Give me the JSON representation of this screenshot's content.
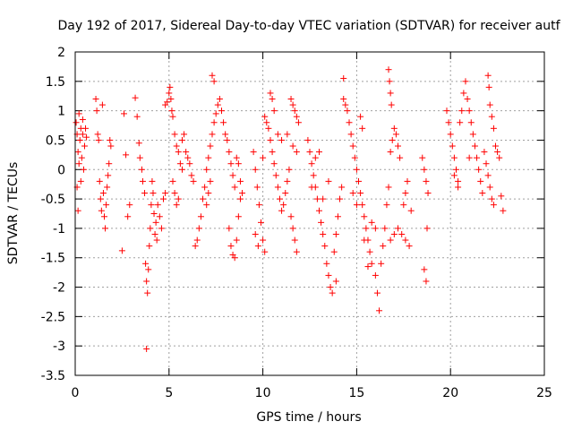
{
  "chart_data": {
    "type": "scatter",
    "title": "Day 192 of 2017, Sidereal Day-to-day VTEC variation (SDTVAR) for receiver autf",
    "xlabel": "GPS time / hours",
    "ylabel": "SDTVAR / TECUs",
    "xlim": [
      0,
      25
    ],
    "ylim": [
      -3.5,
      2
    ],
    "xticks": [
      0,
      5,
      10,
      15,
      20,
      25
    ],
    "xtick_labels": [
      "0",
      "5",
      "10",
      "15",
      "20",
      "25"
    ],
    "yticks": [
      -3.5,
      -3,
      -2.5,
      -2,
      -1.5,
      -1,
      -0.5,
      0,
      0.5,
      1,
      1.5,
      2
    ],
    "ytick_labels": [
      "-3.5",
      "-3",
      "-2.5",
      "-2",
      "-1.5",
      "-1",
      "-0.5",
      "0",
      "0.5",
      "1",
      "1.5",
      "2"
    ],
    "grid": true,
    "marker": "+",
    "color": "#ff0000",
    "series": [
      {
        "name": "SDTVAR",
        "points": [
          [
            0.05,
            0.8
          ],
          [
            0.1,
            0.6
          ],
          [
            0.1,
            -0.3
          ],
          [
            0.15,
            0.3
          ],
          [
            0.15,
            -0.7
          ],
          [
            0.2,
            0.1
          ],
          [
            0.25,
            0.5
          ],
          [
            0.3,
            0.7
          ],
          [
            0.3,
            -0.2
          ],
          [
            0.35,
            0.2
          ],
          [
            0.4,
            0.6
          ],
          [
            0.45,
            0.0
          ],
          [
            0.5,
            0.4
          ],
          [
            0.55,
            0.7
          ],
          [
            0.6,
            0.55
          ],
          [
            0.2,
            0.95
          ],
          [
            0.4,
            0.85
          ],
          [
            1.1,
            1.2
          ],
          [
            1.15,
            1.0
          ],
          [
            1.2,
            0.6
          ],
          [
            1.25,
            0.5
          ],
          [
            1.3,
            -0.2
          ],
          [
            1.35,
            -0.5
          ],
          [
            1.4,
            -0.7
          ],
          [
            1.5,
            -0.4
          ],
          [
            1.55,
            -0.8
          ],
          [
            1.6,
            -1.0
          ],
          [
            1.65,
            -0.6
          ],
          [
            1.7,
            -0.3
          ],
          [
            1.75,
            -0.1
          ],
          [
            1.8,
            0.1
          ],
          [
            1.9,
            0.4
          ],
          [
            1.45,
            1.1
          ],
          [
            1.85,
            0.5
          ],
          [
            2.5,
            -1.38
          ],
          [
            2.6,
            0.95
          ],
          [
            2.7,
            0.25
          ],
          [
            2.8,
            -0.8
          ],
          [
            2.9,
            -0.6
          ],
          [
            3.2,
            1.22
          ],
          [
            3.3,
            0.9
          ],
          [
            3.4,
            0.45
          ],
          [
            3.45,
            0.2
          ],
          [
            3.55,
            0.0
          ],
          [
            3.6,
            -0.2
          ],
          [
            3.7,
            -0.4
          ],
          [
            3.75,
            -1.6
          ],
          [
            3.8,
            -1.9
          ],
          [
            3.85,
            -2.1
          ],
          [
            3.9,
            -1.7
          ],
          [
            3.95,
            -1.3
          ],
          [
            4.0,
            -1.0
          ],
          [
            4.05,
            -0.6
          ],
          [
            4.1,
            -0.2
          ],
          [
            4.15,
            -0.4
          ],
          [
            4.2,
            -0.75
          ],
          [
            4.3,
            -0.9
          ],
          [
            4.4,
            -0.6
          ],
          [
            4.5,
            -0.8
          ],
          [
            4.6,
            -1.0
          ],
          [
            4.7,
            -0.5
          ],
          [
            4.8,
            -0.4
          ],
          [
            3.8,
            -3.05
          ],
          [
            4.25,
            -1.1
          ],
          [
            4.35,
            -1.2
          ],
          [
            4.8,
            1.1
          ],
          [
            4.9,
            1.15
          ],
          [
            5.0,
            1.3
          ],
          [
            5.05,
            1.4
          ],
          [
            5.1,
            1.2
          ],
          [
            5.15,
            1.0
          ],
          [
            5.2,
            0.9
          ],
          [
            5.3,
            0.6
          ],
          [
            5.4,
            0.4
          ],
          [
            5.5,
            0.3
          ],
          [
            5.6,
            0.1
          ],
          [
            5.7,
            0.0
          ],
          [
            5.2,
            -0.2
          ],
          [
            5.3,
            -0.4
          ],
          [
            5.4,
            -0.6
          ],
          [
            5.5,
            -0.5
          ],
          [
            5.7,
            0.5
          ],
          [
            5.8,
            0.6
          ],
          [
            5.9,
            0.3
          ],
          [
            6.0,
            0.2
          ],
          [
            6.1,
            0.1
          ],
          [
            6.2,
            -0.1
          ],
          [
            6.3,
            -0.2
          ],
          [
            6.4,
            -1.3
          ],
          [
            6.5,
            -1.2
          ],
          [
            6.6,
            -1.0
          ],
          [
            6.7,
            -0.8
          ],
          [
            6.8,
            -0.5
          ],
          [
            6.9,
            -0.3
          ],
          [
            7.0,
            0.0
          ],
          [
            7.1,
            0.2
          ],
          [
            7.2,
            0.4
          ],
          [
            7.3,
            0.6
          ],
          [
            7.4,
            0.8
          ],
          [
            7.5,
            0.95
          ],
          [
            7.6,
            1.1
          ],
          [
            7.7,
            1.2
          ],
          [
            7.8,
            1.0
          ],
          [
            7.9,
            0.8
          ],
          [
            8.0,
            0.6
          ],
          [
            8.1,
            0.5
          ],
          [
            8.2,
            0.3
          ],
          [
            8.3,
            0.1
          ],
          [
            8.4,
            -0.1
          ],
          [
            8.5,
            -0.3
          ],
          [
            7.3,
            1.6
          ],
          [
            7.4,
            1.5
          ],
          [
            8.6,
            0.2
          ],
          [
            8.7,
            0.1
          ],
          [
            8.8,
            -0.2
          ],
          [
            7.0,
            -0.6
          ],
          [
            7.1,
            -0.4
          ],
          [
            7.2,
            -0.2
          ],
          [
            8.2,
            -1.0
          ],
          [
            8.3,
            -1.3
          ],
          [
            8.4,
            -1.45
          ],
          [
            8.5,
            -1.5
          ],
          [
            8.6,
            -1.2
          ],
          [
            8.7,
            -0.8
          ],
          [
            8.8,
            -0.5
          ],
          [
            8.9,
            -0.4
          ],
          [
            9.5,
            0.3
          ],
          [
            9.6,
            0.0
          ],
          [
            9.7,
            -0.3
          ],
          [
            9.8,
            -0.6
          ],
          [
            9.9,
            -0.9
          ],
          [
            10.0,
            -1.2
          ],
          [
            10.1,
            -1.4
          ],
          [
            9.6,
            -1.1
          ],
          [
            9.75,
            -1.3
          ],
          [
            10.0,
            0.2
          ],
          [
            10.1,
            0.9
          ],
          [
            10.3,
            0.7
          ],
          [
            10.4,
            0.5
          ],
          [
            10.5,
            0.3
          ],
          [
            10.6,
            0.1
          ],
          [
            10.7,
            -0.1
          ],
          [
            10.8,
            -0.3
          ],
          [
            10.9,
            -0.5
          ],
          [
            11.0,
            -0.7
          ],
          [
            11.1,
            -0.6
          ],
          [
            11.2,
            -0.4
          ],
          [
            11.3,
            -0.2
          ],
          [
            11.4,
            0.0
          ],
          [
            11.5,
            -0.8
          ],
          [
            11.6,
            -1.0
          ],
          [
            11.7,
            -1.2
          ],
          [
            11.8,
            -1.4
          ],
          [
            10.4,
            1.3
          ],
          [
            10.5,
            1.2
          ],
          [
            10.6,
            1.0
          ],
          [
            11.5,
            1.2
          ],
          [
            11.6,
            1.1
          ],
          [
            11.7,
            1.0
          ],
          [
            11.8,
            0.9
          ],
          [
            11.9,
            0.8
          ],
          [
            11.0,
            0.5
          ],
          [
            11.3,
            0.6
          ],
          [
            11.6,
            0.4
          ],
          [
            11.8,
            0.3
          ],
          [
            10.2,
            0.8
          ],
          [
            10.8,
            0.6
          ],
          [
            12.4,
            0.5
          ],
          [
            12.5,
            0.3
          ],
          [
            12.6,
            0.1
          ],
          [
            12.7,
            -0.1
          ],
          [
            12.8,
            -0.3
          ],
          [
            12.9,
            -0.5
          ],
          [
            13.0,
            -0.7
          ],
          [
            13.1,
            -0.9
          ],
          [
            13.2,
            -1.1
          ],
          [
            13.3,
            -1.3
          ],
          [
            13.4,
            -1.6
          ],
          [
            13.5,
            -1.8
          ],
          [
            13.6,
            -2.0
          ],
          [
            13.7,
            -2.1
          ],
          [
            13.8,
            -1.4
          ],
          [
            13.9,
            -1.1
          ],
          [
            14.0,
            -0.8
          ],
          [
            14.1,
            -0.5
          ],
          [
            14.2,
            -0.3
          ],
          [
            12.8,
            0.2
          ],
          [
            13.0,
            0.3
          ],
          [
            13.5,
            -0.2
          ],
          [
            13.9,
            -1.9
          ],
          [
            12.6,
            -0.3
          ],
          [
            13.2,
            -0.5
          ],
          [
            14.3,
            1.2
          ],
          [
            14.4,
            1.1
          ],
          [
            14.5,
            1.0
          ],
          [
            14.6,
            0.8
          ],
          [
            14.7,
            0.6
          ],
          [
            14.8,
            0.4
          ],
          [
            14.9,
            0.2
          ],
          [
            15.0,
            0.0
          ],
          [
            15.1,
            -0.2
          ],
          [
            15.2,
            -0.4
          ],
          [
            15.3,
            -0.6
          ],
          [
            15.4,
            -0.8
          ],
          [
            15.5,
            -1.0
          ],
          [
            15.6,
            -1.2
          ],
          [
            15.7,
            -1.4
          ],
          [
            15.8,
            -1.6
          ],
          [
            14.3,
            1.55
          ],
          [
            15.2,
            0.9
          ],
          [
            15.3,
            0.7
          ],
          [
            14.8,
            -0.4
          ],
          [
            15.0,
            -0.6
          ],
          [
            15.8,
            -0.9
          ],
          [
            16.0,
            -1.0
          ],
          [
            15.4,
            -1.2
          ],
          [
            15.6,
            -1.65
          ],
          [
            16.0,
            -1.8
          ],
          [
            16.1,
            -2.1
          ],
          [
            16.2,
            -2.4
          ],
          [
            16.3,
            -1.6
          ],
          [
            16.4,
            -1.3
          ],
          [
            16.5,
            -1.0
          ],
          [
            16.6,
            -0.6
          ],
          [
            16.7,
            -0.3
          ],
          [
            16.8,
            0.3
          ],
          [
            16.9,
            0.5
          ],
          [
            17.0,
            0.7
          ],
          [
            17.1,
            0.6
          ],
          [
            17.2,
            0.4
          ],
          [
            17.3,
            0.2
          ],
          [
            16.8,
            -1.2
          ],
          [
            17.0,
            -1.1
          ],
          [
            17.2,
            -1.0
          ],
          [
            17.4,
            -1.1
          ],
          [
            17.6,
            -1.2
          ],
          [
            17.8,
            -1.3
          ],
          [
            16.7,
            1.7
          ],
          [
            16.75,
            1.5
          ],
          [
            16.8,
            1.3
          ],
          [
            16.85,
            1.1
          ],
          [
            17.5,
            -0.6
          ],
          [
            17.6,
            -0.4
          ],
          [
            17.7,
            -0.2
          ],
          [
            17.9,
            -0.7
          ],
          [
            18.5,
            0.2
          ],
          [
            18.6,
            0.0
          ],
          [
            18.7,
            -0.2
          ],
          [
            18.8,
            -0.4
          ],
          [
            18.6,
            -1.7
          ],
          [
            18.7,
            -1.9
          ],
          [
            18.75,
            -1.0
          ],
          [
            19.8,
            1.0
          ],
          [
            19.9,
            0.8
          ],
          [
            20.0,
            0.6
          ],
          [
            20.1,
            0.4
          ],
          [
            20.2,
            0.2
          ],
          [
            20.3,
            0.0
          ],
          [
            20.4,
            -0.2
          ],
          [
            20.5,
            0.8
          ],
          [
            20.6,
            1.0
          ],
          [
            20.7,
            1.3
          ],
          [
            20.8,
            1.5
          ],
          [
            20.9,
            1.2
          ],
          [
            21.0,
            1.0
          ],
          [
            21.1,
            0.8
          ],
          [
            21.2,
            0.6
          ],
          [
            21.3,
            0.4
          ],
          [
            21.4,
            0.2
          ],
          [
            21.5,
            0.0
          ],
          [
            21.6,
            -0.2
          ],
          [
            21.7,
            -0.4
          ],
          [
            21.8,
            0.3
          ],
          [
            21.9,
            0.1
          ],
          [
            22.0,
            -0.1
          ],
          [
            22.1,
            -0.3
          ],
          [
            22.2,
            -0.5
          ],
          [
            22.3,
            -0.6
          ],
          [
            22.4,
            0.4
          ],
          [
            22.5,
            0.3
          ],
          [
            22.0,
            1.6
          ],
          [
            22.05,
            1.4
          ],
          [
            22.1,
            1.1
          ],
          [
            22.2,
            0.9
          ],
          [
            22.3,
            0.7
          ],
          [
            22.6,
            0.2
          ],
          [
            22.8,
            -0.7
          ],
          [
            22.7,
            -0.45
          ],
          [
            20.4,
            -0.3
          ],
          [
            20.2,
            -0.1
          ],
          [
            21.0,
            0.2
          ]
        ]
      }
    ]
  }
}
